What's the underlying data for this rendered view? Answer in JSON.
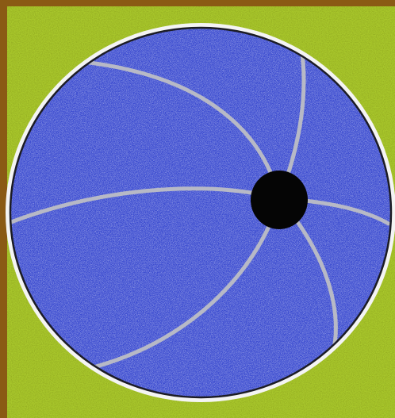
{
  "scene": {
    "description_tokens": [],
    "colors": {
      "frame_brown": "#8a5a14",
      "grass_green": "#a9c82c",
      "grass_dark": "#8ea41e",
      "grass_light": "#cbe04a",
      "ball_blue": "#3f4fd1",
      "ball_blue_light": "#6f7fe6",
      "seam_grey": "#b7b9c6",
      "outline_black": "#1c1c24",
      "hub_black": "#050505",
      "halo_white": "#f4f4f4"
    },
    "icons": {
      "ball": "beach-ball-icon",
      "hub": "ball-hub-icon"
    }
  }
}
